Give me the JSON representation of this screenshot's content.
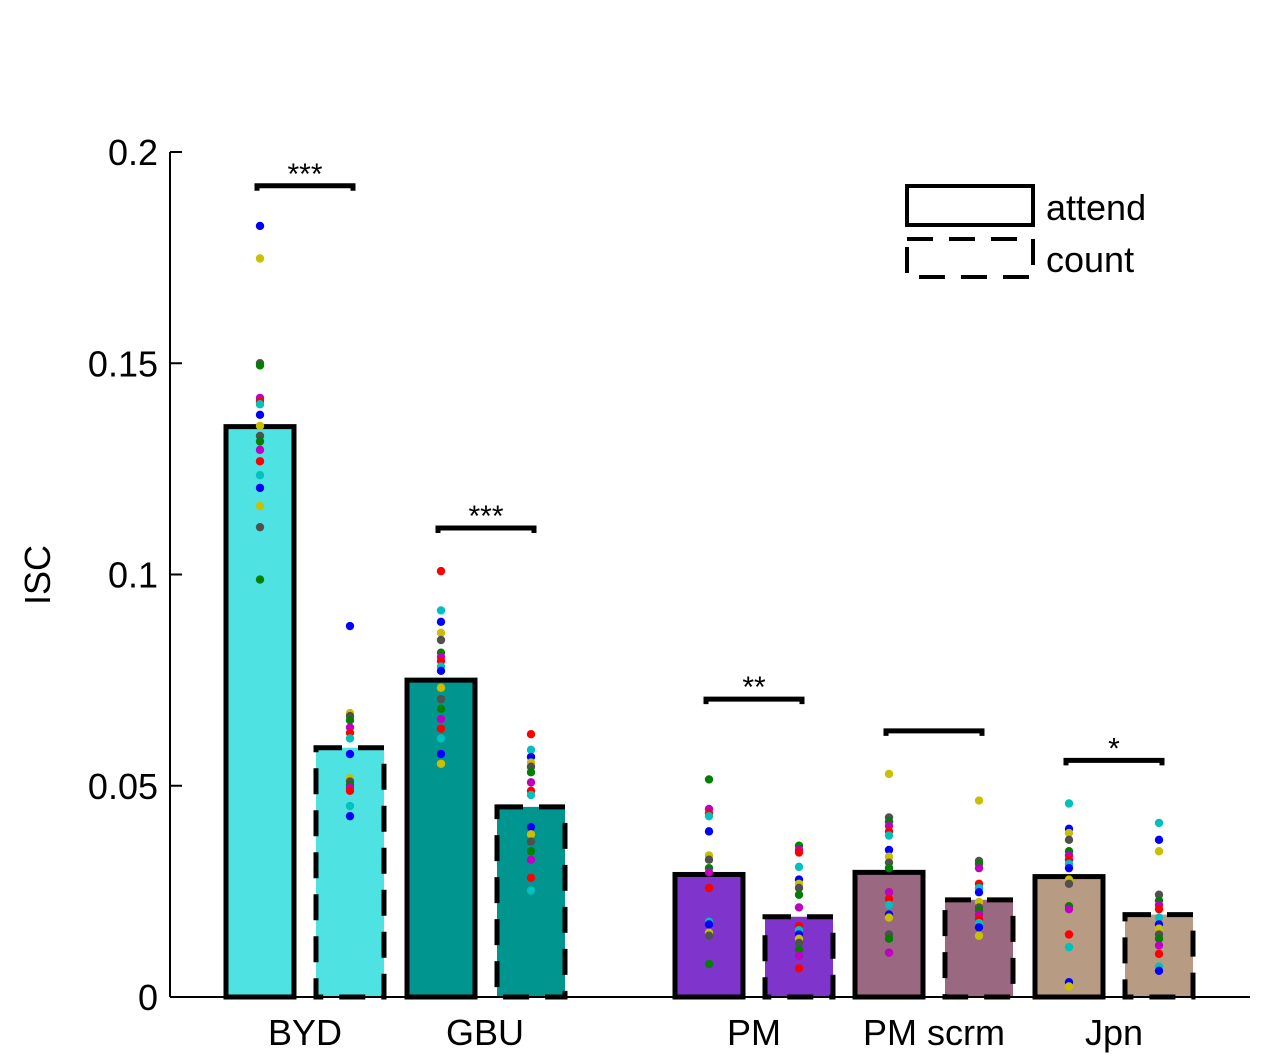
{
  "chart_data": {
    "type": "bar",
    "title": "",
    "xlabel": "",
    "ylabel": "ISC",
    "ylim": [
      0,
      0.2
    ],
    "yticks": [
      "0",
      "0.05",
      "0.1",
      "0.15",
      "0.2"
    ],
    "categories": [
      "BYD",
      "GBU",
      "PM",
      "PM scrm",
      "Jpn"
    ],
    "legend": {
      "placement": "top-right",
      "entries": [
        "attend",
        "count"
      ]
    },
    "series": [
      {
        "name": "attend",
        "border": "solid",
        "values": [
          0.135,
          0.075,
          0.029,
          0.0295,
          0.0285
        ]
      },
      {
        "name": "count",
        "border": "dashed",
        "values": [
          0.059,
          0.045,
          0.019,
          0.023,
          0.0195
        ]
      }
    ],
    "colors": [
      "#4ee2e2",
      "#00968f",
      "#7f35cc",
      "#9a6981",
      "#b89b83"
    ],
    "significance": [
      {
        "category": "BYD",
        "label": "***",
        "y": 0.192
      },
      {
        "category": "GBU",
        "label": "***",
        "y": 0.111
      },
      {
        "category": "PM",
        "label": "**",
        "y": 0.0705
      },
      {
        "category": "PM scrm",
        "label": "",
        "y": 0.063
      },
      {
        "category": "Jpn",
        "label": "*",
        "y": 0.056
      }
    ],
    "point_colors": [
      "#0000ff",
      "#ff0000",
      "#008000",
      "#c8c000",
      "#00c0c0",
      "#c000c0",
      "#505050"
    ],
    "points": [
      {
        "attend": [
          0.1825,
          0.1748,
          0.15,
          0.1495,
          0.1418,
          0.141,
          0.1403,
          0.1378,
          0.1352,
          0.1328,
          0.1315,
          0.1295,
          0.1268,
          0.1235,
          0.1205,
          0.1162,
          0.1112,
          0.0988
        ],
        "count": [
          0.0878,
          0.0672,
          0.0665,
          0.0655,
          0.0638,
          0.0625,
          0.0612,
          0.0575,
          0.0518,
          0.051,
          0.0502,
          0.0495,
          0.0488,
          0.0452,
          0.0428
        ]
      },
      {
        "attend": [
          0.1008,
          0.0915,
          0.0888,
          0.0862,
          0.0845,
          0.0815,
          0.0805,
          0.0795,
          0.0782,
          0.0772,
          0.0732,
          0.0705,
          0.0682,
          0.0658,
          0.0635,
          0.0612,
          0.0575,
          0.0552
        ],
        "count": [
          0.0622,
          0.0585,
          0.0568,
          0.0555,
          0.0545,
          0.0532,
          0.0508,
          0.0488,
          0.0478,
          0.0402,
          0.0385,
          0.0368,
          0.0345,
          0.0325,
          0.0282,
          0.0252
        ]
      },
      {
        "attend": [
          0.0515,
          0.0445,
          0.0435,
          0.0428,
          0.0392,
          0.0335,
          0.0325,
          0.0305,
          0.0295,
          0.0258,
          0.0178,
          0.0172,
          0.0152,
          0.0145,
          0.0078
        ],
        "count": [
          0.0358,
          0.0348,
          0.0342,
          0.0308,
          0.0278,
          0.0268,
          0.0258,
          0.0242,
          0.0212,
          0.0168,
          0.0158,
          0.0148,
          0.0138,
          0.0128,
          0.0112,
          0.0098,
          0.0068
        ]
      },
      {
        "attend": [
          0.0528,
          0.0425,
          0.0415,
          0.0405,
          0.0392,
          0.0382,
          0.0348,
          0.0332,
          0.0318,
          0.0305,
          0.0248,
          0.0232,
          0.0218,
          0.0195,
          0.0188,
          0.0148,
          0.0138,
          0.0105
        ],
        "count": [
          0.0465,
          0.0322,
          0.0315,
          0.0305,
          0.0268,
          0.0258,
          0.0248,
          0.0225,
          0.0212,
          0.0205,
          0.0195,
          0.0185,
          0.0175,
          0.0165,
          0.0145
        ]
      },
      {
        "attend": [
          0.0458,
          0.0398,
          0.0388,
          0.0372,
          0.0345,
          0.0335,
          0.0325,
          0.0315,
          0.0305,
          0.0278,
          0.0268,
          0.0215,
          0.0208,
          0.0148,
          0.0118,
          0.0035,
          0.0025
        ],
        "count": [
          0.0412,
          0.0372,
          0.0345,
          0.0242,
          0.0228,
          0.0218,
          0.0208,
          0.0188,
          0.0172,
          0.0162,
          0.0148,
          0.0138,
          0.0122,
          0.0102,
          0.0072,
          0.0062
        ]
      }
    ]
  }
}
